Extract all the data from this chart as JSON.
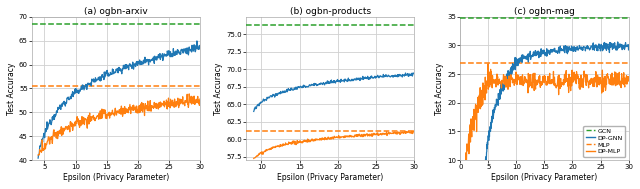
{
  "fig_width": 6.4,
  "fig_height": 1.89,
  "dpi": 100,
  "subplots": [
    {
      "title": "(a) ogbn-arxiv",
      "xlabel": "Epsilon (Privacy Parameter)",
      "ylabel": "Test Accuracy",
      "xlim": [
        3,
        30
      ],
      "ylim": [
        40,
        70
      ],
      "xticks": [
        5,
        10,
        15,
        20,
        25,
        30
      ],
      "yticks": [
        40,
        45,
        50,
        55,
        60,
        65,
        70
      ],
      "gcn_val": 68.4,
      "mlp_val": 55.5,
      "dp_gnn_x0": 4.0,
      "dp_gnn_y0": 40.5,
      "dp_gnn_yend": 63.5,
      "dp_gnn_noise": 0.4,
      "dp_mlp_x0": 4.0,
      "dp_mlp_y0": 40.5,
      "dp_mlp_yend": 52.5,
      "dp_mlp_noise": 0.6
    },
    {
      "title": "(b) ogbn-products",
      "xlabel": "Epsilon (Privacy Parameter)",
      "ylabel": "Test Accuracy",
      "xlim": [
        8,
        30
      ],
      "ylim": [
        57.0,
        77.5
      ],
      "xticks": [
        10,
        15,
        20,
        25,
        30
      ],
      "yticks": [
        57.5,
        60.0,
        62.5,
        65.0,
        67.5,
        70.0,
        72.5,
        75.0
      ],
      "gcn_val": 76.3,
      "mlp_val": 61.1,
      "dp_gnn_x0": 9.0,
      "dp_gnn_y0": 64.1,
      "dp_gnn_yend": 69.3,
      "dp_gnn_noise": 0.12,
      "dp_mlp_x0": 9.0,
      "dp_mlp_y0": 57.2,
      "dp_mlp_yend": 61.0,
      "dp_mlp_noise": 0.1
    },
    {
      "title": "(c) ogbn-mag",
      "xlabel": "Epsilon (Privacy Parameter)",
      "ylabel": "Test Accuracy",
      "xlim": [
        0,
        30
      ],
      "ylim": [
        10,
        35
      ],
      "xticks": [
        0,
        5,
        10,
        15,
        20,
        25,
        30
      ],
      "yticks": [
        10,
        15,
        20,
        25,
        30,
        35
      ],
      "gcn_val": 34.7,
      "mlp_val": 27.0,
      "dp_gnn_x0": 4.5,
      "dp_gnn_y0": 10.0,
      "dp_gnn_yend": 30.0,
      "dp_gnn_noise": 0.35,
      "dp_mlp_x0": 1.0,
      "dp_mlp_y0": 10.0,
      "dp_mlp_yend": 24.0,
      "dp_mlp_noise": 0.9
    }
  ],
  "colors": {
    "gcn": "#2ca02c",
    "dp_gnn": "#1f77b4",
    "mlp": "#ff7f0e",
    "dp_mlp": "#ff7f0e"
  },
  "background_color": "#ffffff",
  "grid_color": "#d0d0d0"
}
